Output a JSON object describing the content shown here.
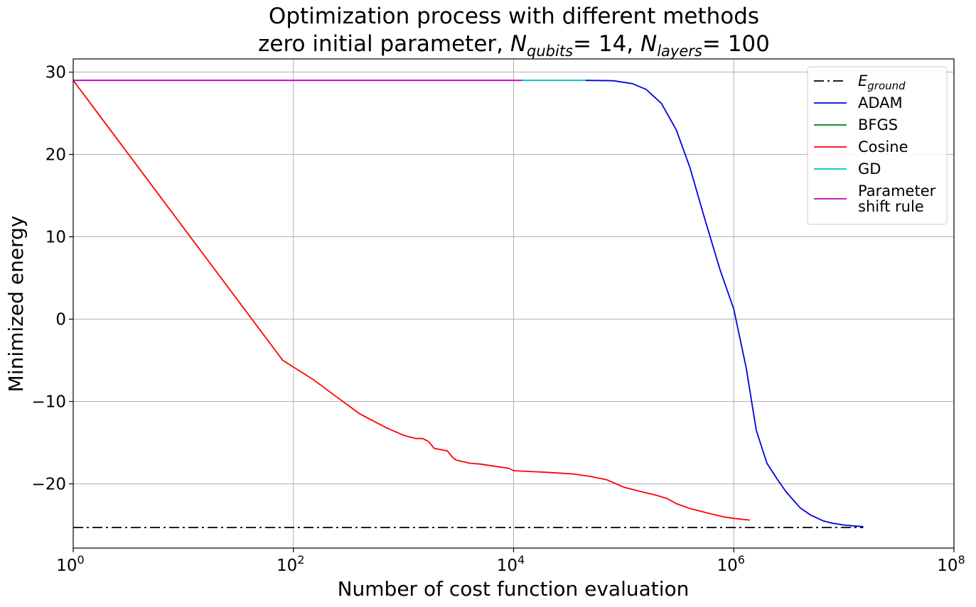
{
  "chart_data": {
    "type": "line",
    "title_line1": "Optimization process with different methods",
    "title_line2_prefix": "zero initial parameter, ",
    "title_line2_q_base": "N",
    "title_line2_q_sub": "qubits",
    "title_line2_q_val": "= 14, ",
    "title_line2_l_base": "N",
    "title_line2_l_sub": "layers",
    "title_line2_l_val": "= 100",
    "xlabel": "Number of cost function evaluation",
    "ylabel": "Minimized energy",
    "xscale": "log",
    "xlim": [
      1,
      100000000
    ],
    "ylim": [
      -27.8,
      31.6
    ],
    "grid": true,
    "legend_position": "top-right",
    "x_ticks": [
      {
        "base": "10",
        "exp": "0",
        "value": 1
      },
      {
        "base": "10",
        "exp": "2",
        "value": 100
      },
      {
        "base": "10",
        "exp": "4",
        "value": 10000
      },
      {
        "base": "10",
        "exp": "6",
        "value": 1000000
      },
      {
        "base": "10",
        "exp": "8",
        "value": 100000000
      }
    ],
    "y_ticks": [
      {
        "label": "30",
        "value": 30
      },
      {
        "label": "20",
        "value": 20
      },
      {
        "label": "10",
        "value": 10
      },
      {
        "label": "0",
        "value": 0
      },
      {
        "label": "−10",
        "value": -10
      },
      {
        "label": "−20",
        "value": -20
      }
    ],
    "series": [
      {
        "name": "E_ground",
        "legend_base": "E",
        "legend_sub": "ground",
        "color": "#000000",
        "dash": "14,5,3,5",
        "x": [
          1,
          15000000
        ],
        "y": [
          -25.3,
          -25.3
        ]
      },
      {
        "name": "ADAM",
        "legend_label": "ADAM",
        "color": "#0000dd",
        "dash": "",
        "x": [
          45000,
          80000,
          120000,
          160000,
          220000,
          300000,
          400000,
          550000,
          750000,
          1000000,
          1300000,
          1600000,
          2000000,
          2500000,
          3000000,
          4000000,
          5000000,
          6500000,
          8000000,
          10000000,
          12000000,
          15000000
        ],
        "y": [
          29,
          28.95,
          28.6,
          27.9,
          26.2,
          23.0,
          18.4,
          12.0,
          6.0,
          1.2,
          -6.0,
          -13.5,
          -17.5,
          -19.5,
          -21.0,
          -22.9,
          -23.8,
          -24.5,
          -24.8,
          -25.0,
          -25.1,
          -25.2
        ]
      },
      {
        "name": "BFGS",
        "legend_label": "BFGS",
        "color": "#008000",
        "dash": "",
        "x": [],
        "y": []
      },
      {
        "name": "Cosine",
        "legend_label": "Cosine",
        "color": "#ff0000",
        "dash": "",
        "x": [
          1,
          80,
          150,
          250,
          400,
          700,
          1000,
          1300,
          1500,
          1700,
          1900,
          2100,
          2500,
          2800,
          3000,
          3200,
          4000,
          5000,
          7000,
          9000,
          10000,
          20000,
          35000,
          50000,
          70000,
          100000,
          150000,
          200000,
          250000,
          300000,
          400000,
          600000,
          800000,
          1000000,
          1400000
        ],
        "y": [
          29,
          -5.0,
          -7.3,
          -9.5,
          -11.5,
          -13.2,
          -14.1,
          -14.5,
          -14.5,
          -14.9,
          -15.7,
          -15.8,
          -16.0,
          -16.8,
          -17.1,
          -17.2,
          -17.5,
          -17.6,
          -17.9,
          -18.1,
          -18.4,
          -18.6,
          -18.8,
          -19.1,
          -19.5,
          -20.4,
          -21.0,
          -21.4,
          -21.8,
          -22.4,
          -23.0,
          -23.6,
          -24.0,
          -24.2,
          -24.4
        ]
      },
      {
        "name": "GD",
        "legend_label": "GD",
        "color": "#00bfbf",
        "dash": "",
        "x": [
          12000,
          45000
        ],
        "y": [
          29,
          29
        ]
      },
      {
        "name": "Parameter shift rule",
        "legend_lines": [
          "Parameter",
          "shift rule"
        ],
        "color": "#bf00bf",
        "dash": "",
        "x": [
          1,
          12000
        ],
        "y": [
          29,
          29
        ]
      }
    ]
  }
}
